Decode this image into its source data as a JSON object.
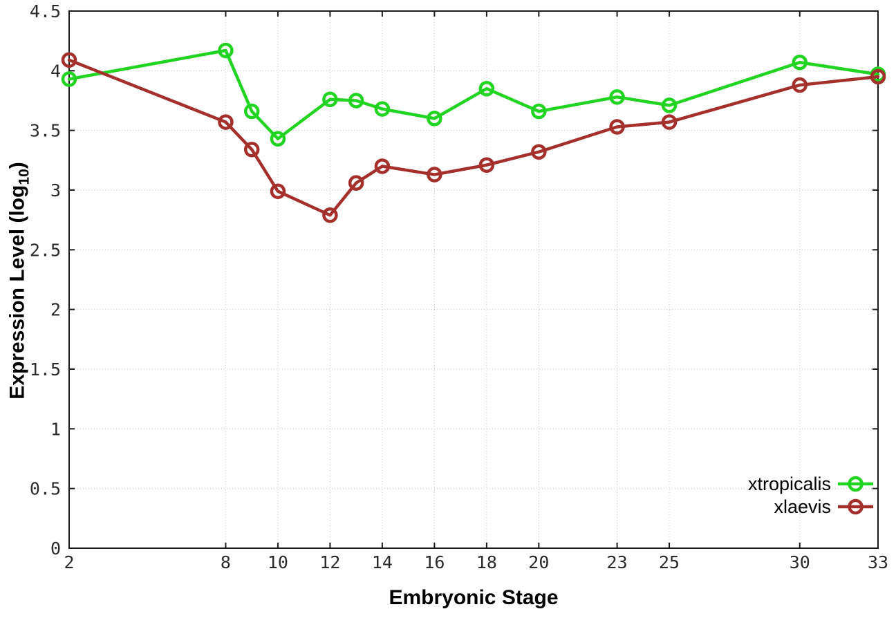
{
  "figure": {
    "xlabel": "Embryonic Stage",
    "ylabel": {
      "prefix": "Expression Level (log",
      "sub": "10",
      "suffix": ")"
    }
  },
  "chart_data": {
    "type": "line",
    "title": "",
    "xlabel": "Embryonic Stage",
    "ylabel": "Expression Level (log10)",
    "x": [
      2,
      8,
      9,
      10,
      12,
      13,
      14,
      16,
      18,
      20,
      23,
      25,
      30,
      33
    ],
    "series": [
      {
        "name": "xtropicalis",
        "color": "#22d422",
        "marker": "open-circle",
        "values": [
          3.93,
          4.17,
          3.66,
          3.43,
          3.76,
          3.75,
          3.68,
          3.6,
          3.85,
          3.66,
          3.78,
          3.71,
          4.07,
          3.97
        ]
      },
      {
        "name": "xlaevis",
        "color": "#a52f2b",
        "marker": "open-circle",
        "values": [
          4.09,
          3.57,
          3.34,
          2.99,
          2.79,
          3.06,
          3.2,
          3.13,
          3.21,
          3.32,
          3.53,
          3.57,
          3.88,
          3.95
        ]
      }
    ],
    "xlim": [
      2,
      33
    ],
    "ylim": [
      0,
      4.5
    ],
    "xticks": [
      2,
      8,
      10,
      12,
      14,
      16,
      18,
      20,
      23,
      25,
      30,
      33
    ],
    "yticks": [
      0,
      0.5,
      1,
      1.5,
      2,
      2.5,
      3,
      3.5,
      4,
      4.5
    ],
    "ytick_labels": [
      "0",
      "0.5",
      "1",
      "1.5",
      "2",
      "2.5",
      "3",
      "3.5",
      "4",
      "4.5"
    ],
    "grid": {
      "show": true,
      "style": "dotted",
      "color": "#c4c4c4"
    },
    "axis_color": "#1a1a1a",
    "background": "#ffffff",
    "legend": {
      "position": "inside-bottom-right",
      "entries": [
        "xtropicalis",
        "xlaevis"
      ]
    }
  }
}
